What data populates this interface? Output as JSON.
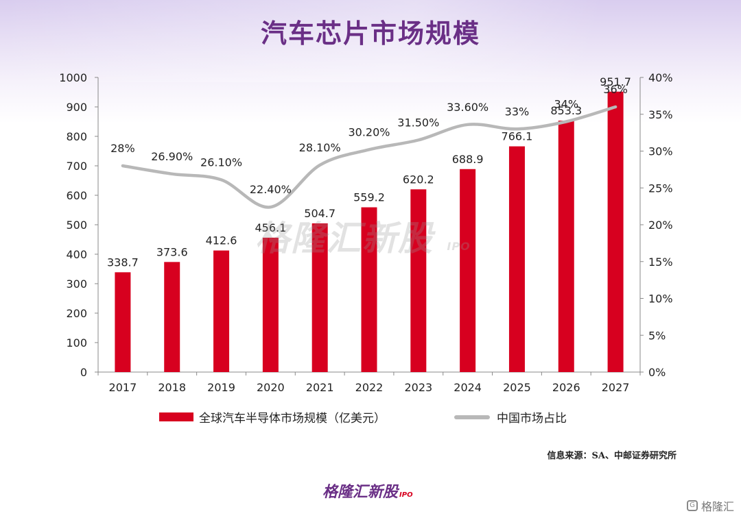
{
  "title": "汽车芯片市场规模",
  "chart_data": {
    "type": "bar+line",
    "categories": [
      "2017",
      "2018",
      "2019",
      "2020",
      "2021",
      "2022",
      "2023",
      "2024",
      "2025",
      "2026",
      "2027"
    ],
    "series": [
      {
        "name": "全球汽车半导体市场规模（亿美元）",
        "type": "bar",
        "axis": "left",
        "color": "#d7001f",
        "values": [
          338.7,
          373.6,
          412.6,
          456.1,
          504.7,
          559.2,
          620.2,
          688.9,
          766.1,
          853.3,
          951.7
        ],
        "labels": [
          "338.7",
          "373.6",
          "412.6",
          "456.1",
          "504.7",
          "559.2",
          "620.2",
          "688.9",
          "766.1",
          "853.3",
          "951.7"
        ]
      },
      {
        "name": "中国市场占比",
        "type": "line",
        "axis": "right",
        "color": "#b8b8b8",
        "values": [
          28,
          26.9,
          26.1,
          22.4,
          28.1,
          30.2,
          31.5,
          33.6,
          33,
          34,
          36
        ],
        "labels": [
          "28%",
          "26.90%",
          "26.10%",
          "22.40%",
          "28.10%",
          "30.20%",
          "31.50%",
          "33.60%",
          "33%",
          "34%",
          "36%"
        ]
      }
    ],
    "y_left": {
      "min": 0,
      "max": 1000,
      "ticks": [
        "0",
        "100",
        "200",
        "300",
        "400",
        "500",
        "600",
        "700",
        "800",
        "900",
        "1000"
      ]
    },
    "y_right": {
      "min": 0,
      "max": 40,
      "ticks": [
        "0%",
        "5%",
        "10%",
        "15%",
        "20%",
        "25%",
        "30%",
        "35%",
        "40%"
      ]
    },
    "grid": false,
    "legend": "bottom"
  },
  "source": "信息来源：SA、中邮证券研究所",
  "watermark": {
    "text": "格隆汇新股",
    "suffix": "IPO"
  },
  "brand_bottom": {
    "text": "格隆汇新股",
    "suffix": "IPO"
  },
  "corner_brand": {
    "icon": "G",
    "text": "格隆汇"
  },
  "colors": {
    "title": "#6a2f86",
    "bar": "#d7001f",
    "line": "#b8b8b8"
  }
}
